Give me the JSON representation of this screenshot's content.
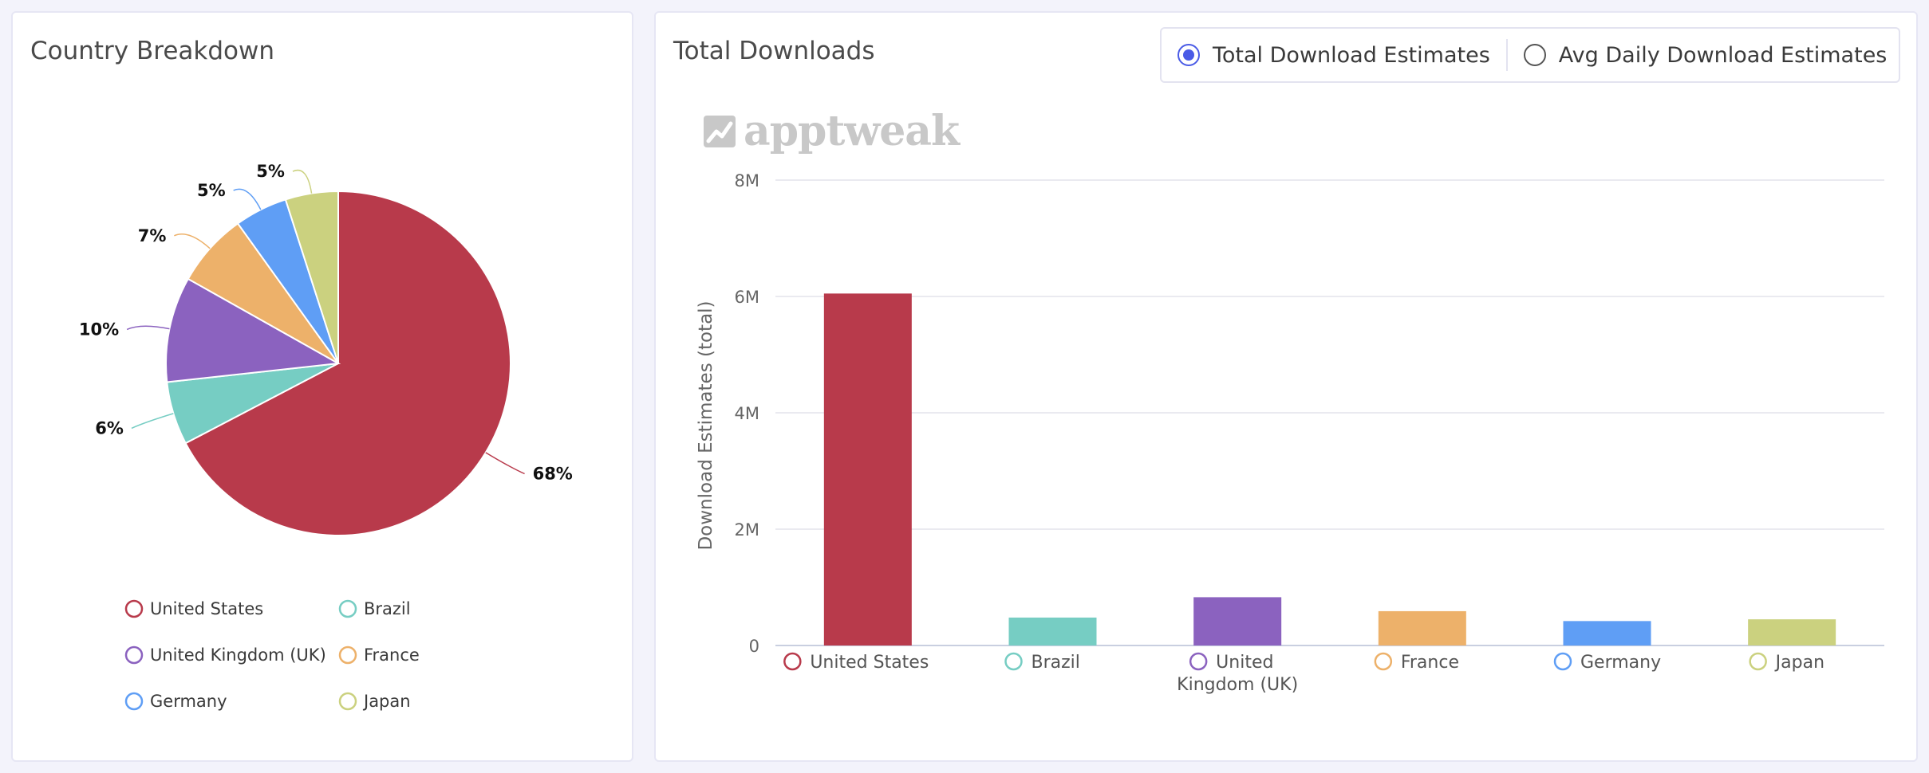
{
  "left_panel": {
    "title": "Country Breakdown"
  },
  "right_panel": {
    "title": "Total Downloads",
    "toggle": {
      "options": [
        {
          "label": "Total Download Estimates",
          "selected": true
        },
        {
          "label": "Avg Daily Download Estimates",
          "selected": false
        }
      ]
    },
    "watermark": "apptweak"
  },
  "colors": {
    "United States": "#b83a4b",
    "Brazil": "#76cdc3",
    "United Kingdom (UK)": "#8b62bf",
    "France": "#edb16a",
    "Germany": "#5f9ef5",
    "Japan": "#cbd17f"
  },
  "chart_data": [
    {
      "type": "pie",
      "title": "Country Breakdown",
      "slices": [
        {
          "label": "United States",
          "value": 68,
          "display": "68%"
        },
        {
          "label": "Brazil",
          "value": 6,
          "display": "6%"
        },
        {
          "label": "United Kingdom (UK)",
          "value": 10,
          "display": "10%"
        },
        {
          "label": "France",
          "value": 7,
          "display": "7%"
        },
        {
          "label": "Germany",
          "value": 5,
          "display": "5%"
        },
        {
          "label": "Japan",
          "value": 5,
          "display": "5%"
        }
      ],
      "legend": [
        "United States",
        "Brazil",
        "United Kingdom (UK)",
        "France",
        "Germany",
        "Japan"
      ],
      "legend_placement": "bottom"
    },
    {
      "type": "bar",
      "title": "Total Downloads",
      "categories": [
        "United States",
        "Brazil",
        "United Kingdom (UK)",
        "France",
        "Germany",
        "Japan"
      ],
      "category_labels": [
        [
          "United States"
        ],
        [
          "Brazil"
        ],
        [
          "United",
          "Kingdom (UK)"
        ],
        [
          "France"
        ],
        [
          "Germany"
        ],
        [
          "Japan"
        ]
      ],
      "values": [
        6050000,
        480000,
        830000,
        590000,
        420000,
        450000
      ],
      "ylabel": "Download Estimates (total)",
      "yticks": [
        "0",
        "2M",
        "4M",
        "6M",
        "8M"
      ],
      "ytick_values": [
        0,
        2000000,
        4000000,
        6000000,
        8000000
      ],
      "ylim": [
        0,
        8000000
      ],
      "grid": true
    }
  ]
}
